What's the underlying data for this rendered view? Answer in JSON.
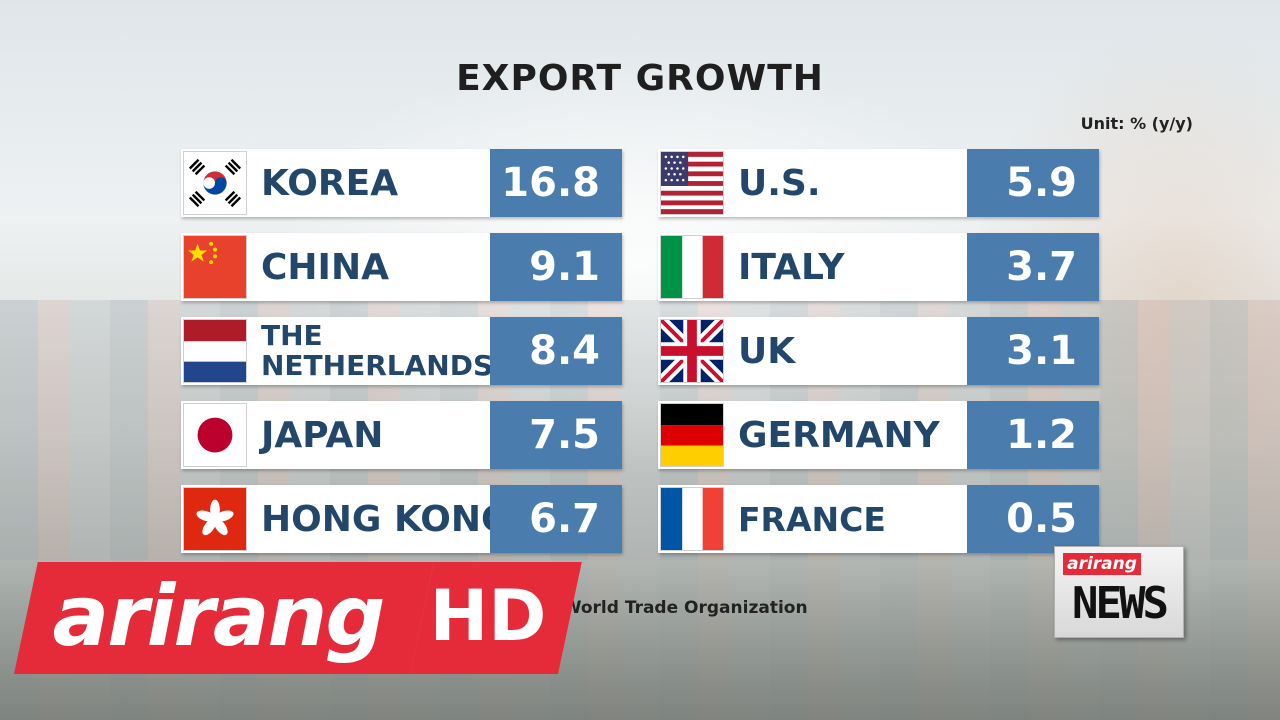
{
  "chart_data": {
    "type": "table",
    "title": "EXPORT GROWTH",
    "unit": "Unit: % (y/y)",
    "columns": [
      [
        {
          "country": "KOREA",
          "value": "16.8",
          "flag": "korea-flag-icon"
        },
        {
          "country": "CHINA",
          "value": "9.1",
          "flag": "china-flag-icon"
        },
        {
          "country": "THE NETHERLANDS",
          "value": "8.4",
          "flag": "netherlands-flag-icon"
        },
        {
          "country": "JAPAN",
          "value": "7.5",
          "flag": "japan-flag-icon"
        },
        {
          "country": "HONG KONG",
          "value": "6.7",
          "flag": "hong-kong-flag-icon"
        }
      ],
      [
        {
          "country": "U.S.",
          "value": "5.9",
          "flag": "us-flag-icon"
        },
        {
          "country": "ITALY",
          "value": "3.7",
          "flag": "italy-flag-icon"
        },
        {
          "country": "UK",
          "value": "3.1",
          "flag": "uk-flag-icon"
        },
        {
          "country": "GERMANY",
          "value": "1.2",
          "flag": "germany-flag-icon"
        },
        {
          "country": "FRANCE",
          "value": "0.5",
          "flag": "france-flag-icon"
        }
      ]
    ],
    "source": ": World Trade Organization"
  },
  "branding": {
    "logo_text": "arirang",
    "hd_text": "HD",
    "news_top": "arirang",
    "news_bottom": "NEWS",
    "accent_color": "#e52b3a"
  },
  "colors": {
    "value_box": "#4a7cad",
    "country_text": "#22476b"
  }
}
